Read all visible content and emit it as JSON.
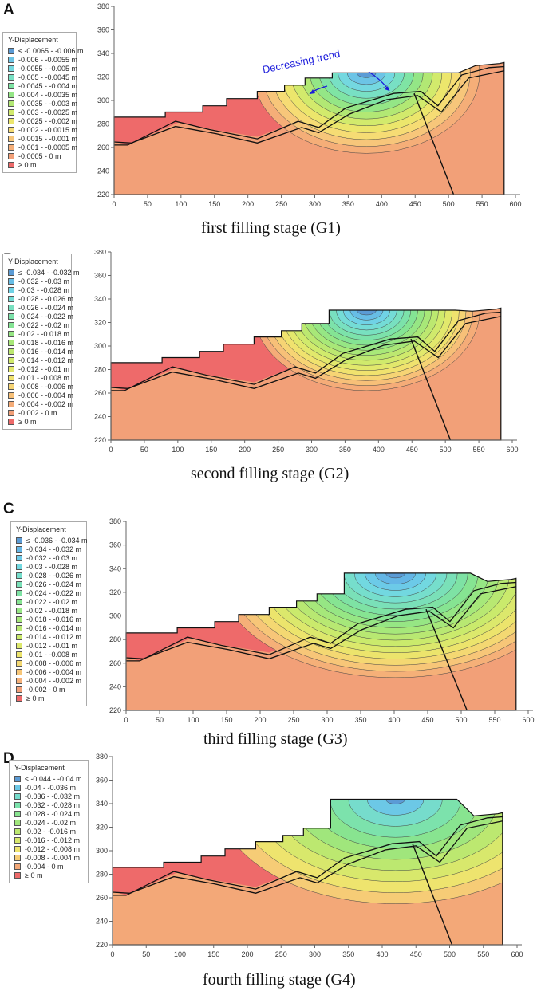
{
  "figure": {
    "panels": [
      {
        "label": "A",
        "caption": "first filling stage (G1)",
        "legend_title": "Y-Displacement",
        "legend": [
          {
            "text": "≤ -0.0065 - -0.006 m",
            "color": "#5b9bd5"
          },
          {
            "text": "-0.006 - -0.0055 m",
            "color": "#6cc4e6"
          },
          {
            "text": "-0.0055 - -0.005 m",
            "color": "#74d8e0"
          },
          {
            "text": "-0.005 - -0.0045 m",
            "color": "#78e0c4"
          },
          {
            "text": "-0.0045 - -0.004 m",
            "color": "#7fe4a4"
          },
          {
            "text": "-0.004 - -0.0035 m",
            "color": "#94e686"
          },
          {
            "text": "-0.0035 - -0.003 m",
            "color": "#b2e874"
          },
          {
            "text": "-0.003 - -0.0025 m",
            "color": "#d2ea6c"
          },
          {
            "text": "-0.0025 - -0.002 m",
            "color": "#ece66c"
          },
          {
            "text": "-0.002 - -0.0015 m",
            "color": "#f6dc74"
          },
          {
            "text": "-0.0015 - -0.001 m",
            "color": "#f7c67a"
          },
          {
            "text": "-0.001 - -0.0005 m",
            "color": "#f5ae78"
          },
          {
            "text": "-0.0005 - 0 m",
            "color": "#f2a078"
          },
          {
            "text": "≥ 0 m",
            "color": "#ee6a6a"
          }
        ],
        "annotation": "Decreasing trend",
        "x_ticks": [
          "0",
          "50",
          "100",
          "150",
          "200",
          "250",
          "300",
          "350",
          "400",
          "450",
          "500",
          "550",
          "600"
        ],
        "y_ticks": [
          "220",
          "240",
          "260",
          "280",
          "300",
          "320",
          "340",
          "360",
          "380"
        ]
      },
      {
        "label": "B",
        "caption": "second filling stage (G2)",
        "legend_title": "Y-Displacement",
        "legend": [
          {
            "text": "≤ -0.034 - -0.032 m",
            "color": "#5b9bd5"
          },
          {
            "text": "-0.032 - -0.03 m",
            "color": "#67bde6"
          },
          {
            "text": "-0.03 - -0.028 m",
            "color": "#70d2e6"
          },
          {
            "text": "-0.028 - -0.026 m",
            "color": "#74dcd6"
          },
          {
            "text": "-0.026 - -0.024 m",
            "color": "#78e0c0"
          },
          {
            "text": "-0.024 - -0.022 m",
            "color": "#7ce2aa"
          },
          {
            "text": "-0.022 - -0.02 m",
            "color": "#84e494"
          },
          {
            "text": "-0.02 - -0.018 m",
            "color": "#96e684"
          },
          {
            "text": "-0.018 - -0.016 m",
            "color": "#a8e878"
          },
          {
            "text": "-0.016 - -0.014 m",
            "color": "#bce870"
          },
          {
            "text": "-0.014 - -0.012 m",
            "color": "#d0ea6c"
          },
          {
            "text": "-0.012 - -0.01 m",
            "color": "#e2e86c"
          },
          {
            "text": "-0.01 - -0.008 m",
            "color": "#f0e26e"
          },
          {
            "text": "-0.008 - -0.006 m",
            "color": "#f6d474"
          },
          {
            "text": "-0.006 - -0.004 m",
            "color": "#f7c078"
          },
          {
            "text": "-0.004 - -0.002 m",
            "color": "#f5ac78"
          },
          {
            "text": "-0.002 - 0 m",
            "color": "#f2a078"
          },
          {
            "text": "≥ 0 m",
            "color": "#ee6a6a"
          }
        ],
        "x_ticks": [
          "0",
          "50",
          "100",
          "150",
          "200",
          "250",
          "300",
          "350",
          "400",
          "450",
          "500",
          "550",
          "600"
        ],
        "y_ticks": [
          "220",
          "240",
          "260",
          "280",
          "300",
          "320",
          "340",
          "360",
          "380"
        ]
      },
      {
        "label": "C",
        "caption": "third filling stage (G3)",
        "legend_title": "Y-Displacement",
        "legend": [
          {
            "text": "≤ -0.036 - -0.034 m",
            "color": "#5b9bd5"
          },
          {
            "text": "-0.034 - -0.032 m",
            "color": "#64b6e6"
          },
          {
            "text": "-0.032 - -0.03 m",
            "color": "#6ccae8"
          },
          {
            "text": "-0.03 - -0.028 m",
            "color": "#72d8e0"
          },
          {
            "text": "-0.028 - -0.026 m",
            "color": "#76decc"
          },
          {
            "text": "-0.026 - -0.024 m",
            "color": "#7ae0b8"
          },
          {
            "text": "-0.024 - -0.022 m",
            "color": "#7ee2a4"
          },
          {
            "text": "-0.022 - -0.02 m",
            "color": "#86e492"
          },
          {
            "text": "-0.02 - -0.018 m",
            "color": "#96e684"
          },
          {
            "text": "-0.018 - -0.016 m",
            "color": "#a6e87a"
          },
          {
            "text": "-0.016 - -0.014 m",
            "color": "#b8e872"
          },
          {
            "text": "-0.014 - -0.012 m",
            "color": "#caea6c"
          },
          {
            "text": "-0.012 - -0.01 m",
            "color": "#dce86c"
          },
          {
            "text": "-0.01 - -0.008 m",
            "color": "#ece46c"
          },
          {
            "text": "-0.008 - -0.006 m",
            "color": "#f4d872"
          },
          {
            "text": "-0.006 - -0.004 m",
            "color": "#f7c678"
          },
          {
            "text": "-0.004 - -0.002 m",
            "color": "#f5b078"
          },
          {
            "text": "-0.002 - 0 m",
            "color": "#f2a078"
          },
          {
            "text": "≥ 0 m",
            "color": "#ee6a6a"
          }
        ],
        "x_ticks": [
          "0",
          "50",
          "100",
          "150",
          "200",
          "250",
          "300",
          "350",
          "400",
          "450",
          "500",
          "550",
          "600"
        ],
        "y_ticks": [
          "220",
          "240",
          "260",
          "280",
          "300",
          "320",
          "340",
          "360",
          "380"
        ]
      },
      {
        "label": "D",
        "caption": "fourth filling stage (G4)",
        "legend_title": "Y-Displacement",
        "legend": [
          {
            "text": "≤ -0.044 - -0.04 m",
            "color": "#5b9bd5"
          },
          {
            "text": "-0.04 - -0.036 m",
            "color": "#6cc8e6"
          },
          {
            "text": "-0.036 - -0.032 m",
            "color": "#76dccc"
          },
          {
            "text": "-0.032 - -0.028 m",
            "color": "#7ce2ac"
          },
          {
            "text": "-0.028 - -0.024 m",
            "color": "#88e490"
          },
          {
            "text": "-0.024 - -0.02 m",
            "color": "#a0e67c"
          },
          {
            "text": "-0.02 - -0.016 m",
            "color": "#bce870"
          },
          {
            "text": "-0.016 - -0.012 m",
            "color": "#d8e86c"
          },
          {
            "text": "-0.012 - -0.008 m",
            "color": "#eee46e"
          },
          {
            "text": "-0.008 - -0.004 m",
            "color": "#f6cc76"
          },
          {
            "text": "-0.004 - 0 m",
            "color": "#f3a878"
          },
          {
            "text": "≥ 0 m",
            "color": "#ee6a6a"
          }
        ],
        "x_ticks": [
          "0",
          "50",
          "100",
          "150",
          "200",
          "250",
          "300",
          "350",
          "400",
          "450",
          "500",
          "550",
          "600"
        ],
        "y_ticks": [
          "220",
          "240",
          "260",
          "280",
          "300",
          "320",
          "340",
          "360",
          "380"
        ]
      }
    ]
  }
}
